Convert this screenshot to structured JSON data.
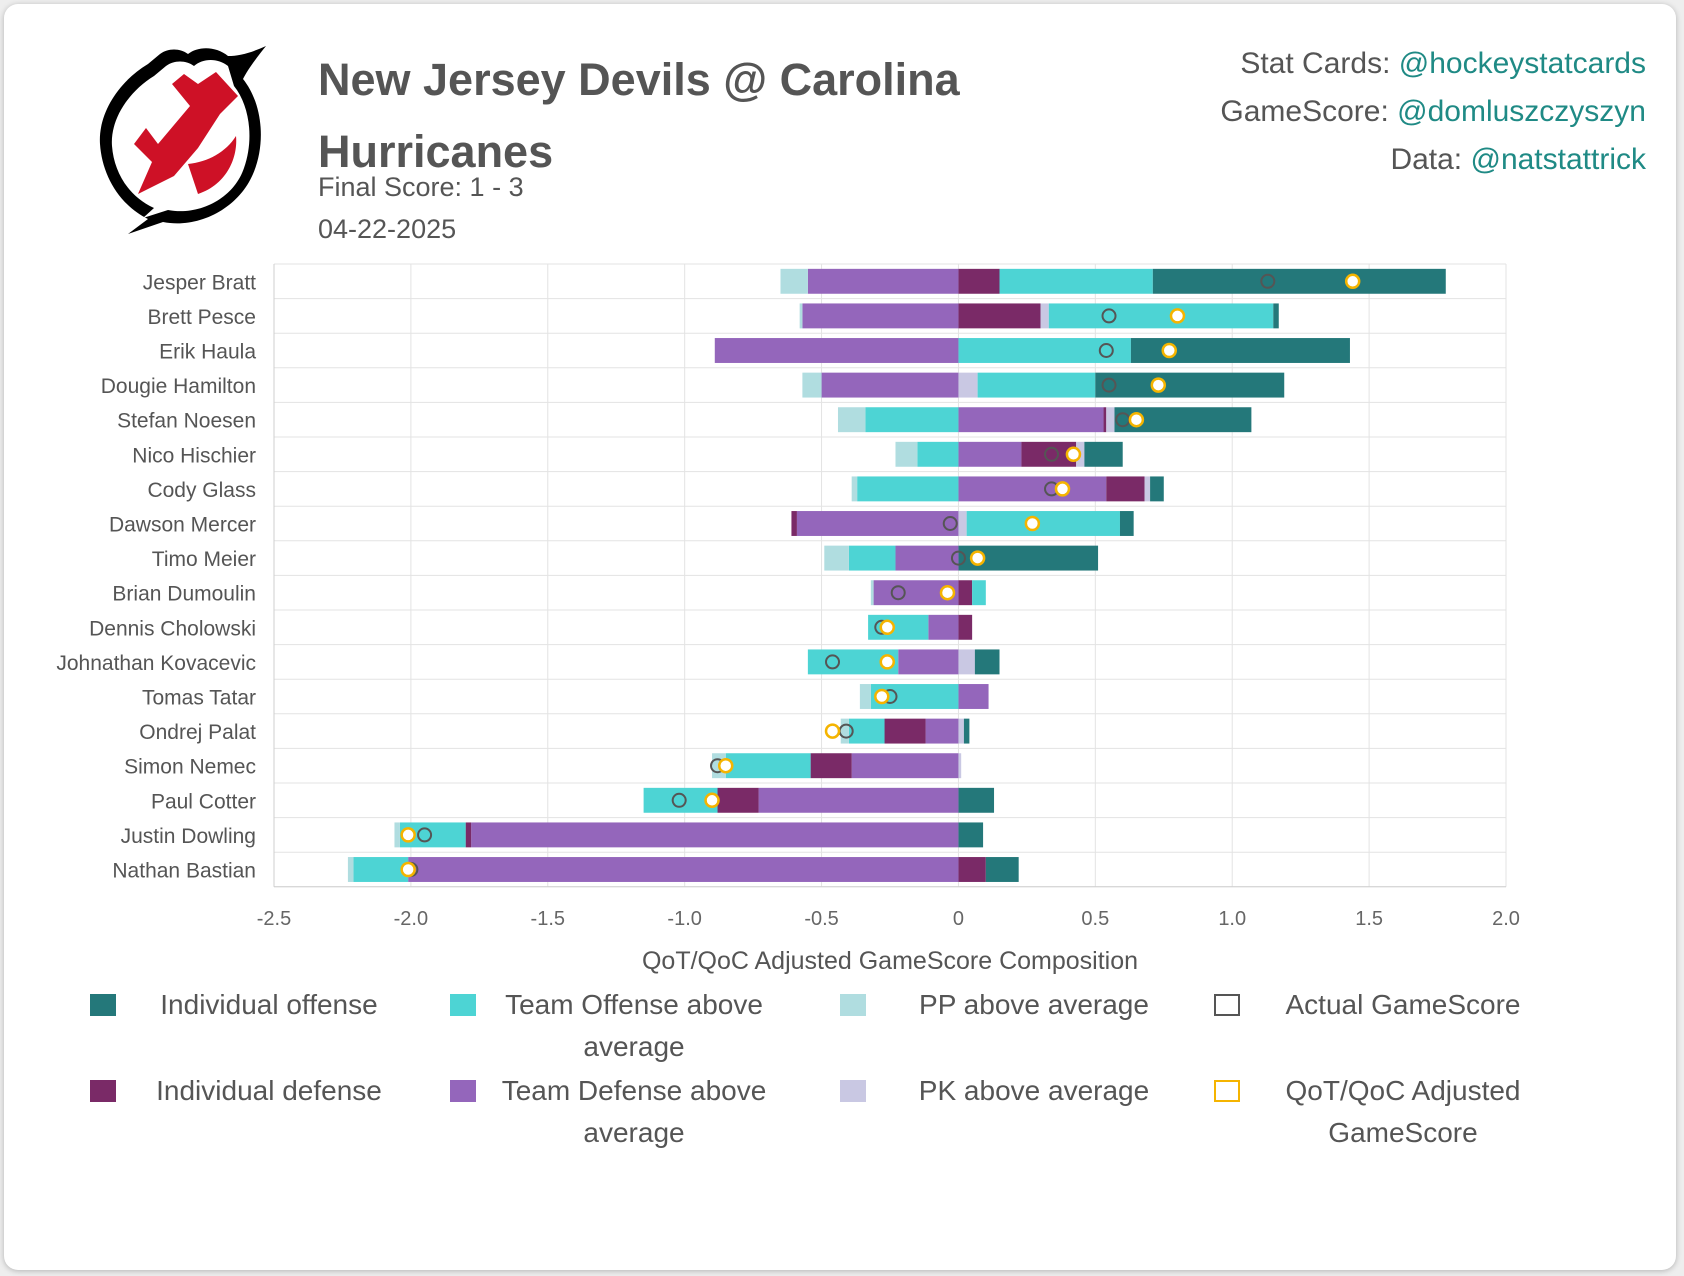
{
  "header": {
    "title": "New Jersey Devils @ Carolina Hurricanes",
    "final_score": "Final Score: 1 - 3",
    "date": "04-22-2025"
  },
  "credits": [
    {
      "label": "Stat Cards: ",
      "handle": "@hockeystatcards"
    },
    {
      "label": "GameScore: ",
      "handle": "@domluszczyszyn"
    },
    {
      "label": "Data: ",
      "handle": "@natstattrick"
    }
  ],
  "logo": {
    "name": "new-jersey-devils-logo",
    "primary_color": "#ce1126",
    "secondary_color": "#000000"
  },
  "colors": {
    "individual_offense": "#24787a",
    "team_offense": "#4dd4d4",
    "pp": "#b0dde0",
    "individual_defense": "#7a2a67",
    "team_defense": "#9466bb",
    "pk": "#c9c8e3",
    "actual_marker": "#555555",
    "adjusted_marker": "#f5b400"
  },
  "legend": [
    {
      "key": "individual_offense",
      "label": "Individual offense",
      "type": "fill"
    },
    {
      "key": "team_offense",
      "label": "Team Offense above average",
      "type": "fill"
    },
    {
      "key": "pp",
      "label": "PP above average",
      "type": "fill"
    },
    {
      "key": "actual_marker",
      "label": "Actual GameScore",
      "type": "outline"
    },
    {
      "key": "individual_defense",
      "label": "Individual defense",
      "type": "fill"
    },
    {
      "key": "team_defense",
      "label": "Team Defense above average",
      "type": "fill"
    },
    {
      "key": "pk",
      "label": "PK above average",
      "type": "fill"
    },
    {
      "key": "adjusted_marker",
      "label": "QoT/QoC Adjusted GameScore",
      "type": "outline"
    }
  ],
  "chart_data": {
    "type": "bar",
    "orientation": "horizontal",
    "stacked": true,
    "xlabel": "QoT/QoC Adjusted GameScore Composition",
    "xlim": [
      -2.5,
      2.0
    ],
    "xticks": [
      -2.5,
      -2.0,
      -1.5,
      -1.0,
      -0.5,
      0,
      0.5,
      1.0,
      1.5,
      2.0
    ],
    "xtick_labels": [
      "-2.5",
      "-2.0",
      "-1.5",
      "-1.0",
      "-0.5",
      "0",
      "0.5",
      "1.0",
      "1.5",
      "2.0"
    ],
    "grid": true,
    "legend_position": "bottom",
    "players": [
      {
        "name": "Jesper Bratt",
        "individual_offense": 1.07,
        "team_offense": 0.56,
        "pp": -0.1,
        "individual_defense": 0.15,
        "team_defense": -0.55,
        "pk": 0.0,
        "actual": 1.13,
        "adjusted": 1.44
      },
      {
        "name": "Brett Pesce",
        "individual_offense": 0.02,
        "team_offense": 0.82,
        "pp": -0.01,
        "individual_defense": 0.3,
        "team_defense": -0.57,
        "pk": 0.03,
        "actual": 0.55,
        "adjusted": 0.8
      },
      {
        "name": "Erik Haula",
        "individual_offense": 0.8,
        "team_offense": 0.63,
        "pp": 0.0,
        "individual_defense": 0.0,
        "team_defense": -0.89,
        "pk": 0.0,
        "actual": 0.54,
        "adjusted": 0.77
      },
      {
        "name": "Dougie Hamilton",
        "individual_offense": 0.69,
        "team_offense": 0.43,
        "pp": -0.07,
        "individual_defense": 0.0,
        "team_defense": -0.5,
        "pk": 0.07,
        "actual": 0.55,
        "adjusted": 0.73
      },
      {
        "name": "Stefan Noesen",
        "individual_offense": 0.5,
        "team_offense": -0.34,
        "pp": -0.1,
        "individual_defense": 0.01,
        "team_defense": 0.53,
        "pk": 0.03,
        "actual": 0.6,
        "adjusted": 0.65
      },
      {
        "name": "Nico Hischier",
        "individual_offense": 0.14,
        "team_offense": -0.15,
        "pp": -0.08,
        "individual_defense": 0.2,
        "team_defense": 0.23,
        "pk": 0.03,
        "actual": 0.34,
        "adjusted": 0.42
      },
      {
        "name": "Cody Glass",
        "individual_offense": 0.05,
        "team_offense": -0.37,
        "pp": -0.02,
        "individual_defense": 0.14,
        "team_defense": 0.54,
        "pk": 0.02,
        "actual": 0.34,
        "adjusted": 0.38
      },
      {
        "name": "Dawson Mercer",
        "individual_offense": 0.05,
        "team_offense": 0.56,
        "pp": 0.0,
        "individual_defense": -0.02,
        "team_defense": -0.59,
        "pk": 0.03,
        "actual": -0.03,
        "adjusted": 0.27
      },
      {
        "name": "Timo Meier",
        "individual_offense": 0.51,
        "team_offense": -0.17,
        "pp": -0.09,
        "individual_defense": 0.0,
        "team_defense": -0.23,
        "pk": 0.0,
        "actual": 0.0,
        "adjusted": 0.07
      },
      {
        "name": "Brian Dumoulin",
        "individual_offense": 0.0,
        "team_offense": 0.05,
        "pp": -0.01,
        "individual_defense": 0.05,
        "team_defense": -0.31,
        "pk": 0.0,
        "actual": -0.22,
        "adjusted": -0.04
      },
      {
        "name": "Dennis Cholowski",
        "individual_offense": 0.0,
        "team_offense": -0.22,
        "pp": 0.0,
        "individual_defense": 0.05,
        "team_defense": -0.11,
        "pk": 0.0,
        "actual": -0.28,
        "adjusted": -0.26
      },
      {
        "name": "Johnathan Kovacevic",
        "individual_offense": 0.09,
        "team_offense": -0.33,
        "pp": 0.0,
        "individual_defense": 0.0,
        "team_defense": -0.22,
        "pk": 0.06,
        "actual": -0.46,
        "adjusted": -0.26
      },
      {
        "name": "Tomas Tatar",
        "individual_offense": 0.0,
        "team_offense": -0.32,
        "pp": -0.04,
        "individual_defense": 0.0,
        "team_defense": 0.11,
        "pk": 0.0,
        "actual": -0.25,
        "adjusted": -0.28
      },
      {
        "name": "Ondrej Palat",
        "individual_offense": 0.02,
        "team_offense": -0.13,
        "pp": -0.03,
        "individual_defense": -0.15,
        "team_defense": -0.12,
        "pk": 0.02,
        "actual": -0.41,
        "adjusted": -0.46
      },
      {
        "name": "Simon Nemec",
        "individual_offense": 0.0,
        "team_offense": -0.31,
        "pp": -0.05,
        "individual_defense": -0.15,
        "team_defense": -0.39,
        "pk": 0.01,
        "actual": -0.88,
        "adjusted": -0.85
      },
      {
        "name": "Paul Cotter",
        "individual_offense": 0.13,
        "team_offense": -0.27,
        "pp": 0.0,
        "individual_defense": -0.15,
        "team_defense": -0.73,
        "pk": 0.0,
        "actual": -1.02,
        "adjusted": -0.9
      },
      {
        "name": "Justin Dowling",
        "individual_offense": 0.09,
        "team_offense": -0.24,
        "pp": -0.02,
        "individual_defense": -0.02,
        "team_defense": -1.78,
        "pk": 0.0,
        "actual": -1.95,
        "adjusted": -2.01
      },
      {
        "name": "Nathan Bastian",
        "individual_offense": 0.12,
        "team_offense": -0.2,
        "pp": -0.02,
        "individual_defense": 0.1,
        "team_defense": -2.01,
        "pk": 0.0,
        "actual": -2.0,
        "adjusted": -2.01
      }
    ]
  }
}
